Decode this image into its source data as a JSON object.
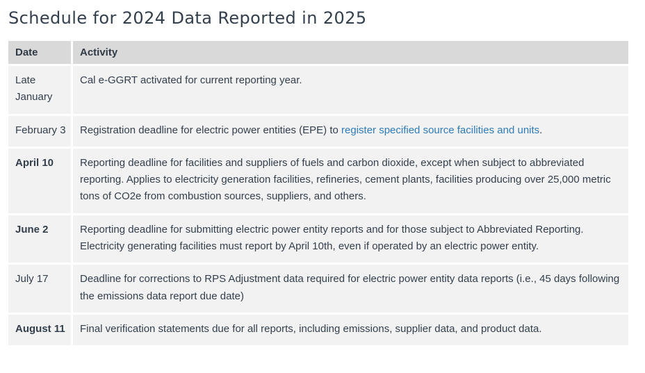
{
  "page": {
    "title": "Schedule for 2024 Data Reported in 2025"
  },
  "table": {
    "columns": [
      "Date",
      "Activity"
    ],
    "rows": [
      {
        "date": "Late January",
        "activity": "Cal e-GGRT activated for current reporting year."
      },
      {
        "date": "February 3",
        "activity_prefix": "Registration deadline for electric power entities (EPE) to ",
        "activity_link": "register specified source facilities and units",
        "activity_suffix": "."
      },
      {
        "date": "April 10",
        "activity": "Reporting deadline for facilities and suppliers of fuels and carbon dioxide, except when subject to abbreviated reporting. Applies to electricity generation facilities, refineries, cement plants, facilities producing over 25,000 metric tons of CO2e from combustion sources, suppliers, and others."
      },
      {
        "date": "June 2",
        "activity": "Reporting deadline for submitting electric power entity reports and for those subject to Abbreviated Reporting. Electricity generating facilities must report by April 10th, even if operated by an electric power entity."
      },
      {
        "date": "July 17",
        "activity": "Deadline for corrections to RPS Adjustment data required for electric power entity data reports (i.e., 45 days following the emissions data report due date)"
      },
      {
        "date": "August 11",
        "activity": "Final verification statements due for all reports, including emissions, supplier data, and product data."
      }
    ]
  },
  "colors": {
    "header_bg": "#d9d9d9",
    "row_bg": "#f2f2f2",
    "text": "#333f4d",
    "link": "#2e7cb8",
    "page_bg": "#ffffff"
  }
}
